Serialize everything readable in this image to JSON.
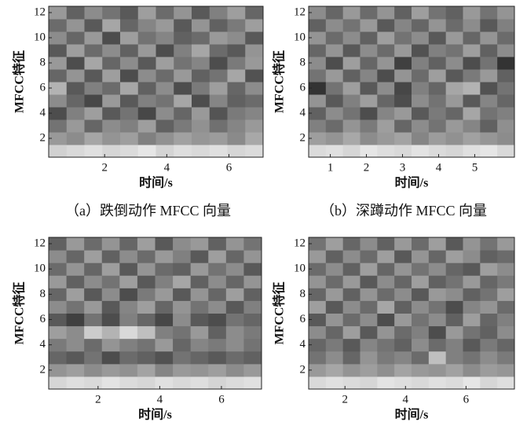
{
  "chart_data": [
    {
      "type": "heatmap",
      "xlabel": "时间/s",
      "ylabel": "MFCC特征",
      "caption": "（a）跌倒动作 MFCC 向量",
      "xlim": [
        0.2,
        7.1
      ],
      "ylim": [
        0.5,
        12.5
      ],
      "xticks": [
        2,
        4,
        6
      ],
      "yticks": [
        2,
        4,
        6,
        8,
        10,
        12
      ],
      "zlim": [
        0,
        100
      ],
      "z": [
        [
          82,
          85,
          88,
          84,
          86,
          90,
          83,
          87,
          85,
          88,
          84,
          86
        ],
        [
          60,
          55,
          65,
          58,
          62,
          50,
          57,
          63,
          59,
          61,
          54,
          66
        ],
        [
          45,
          60,
          40,
          55,
          50,
          62,
          38,
          48,
          57,
          44,
          52,
          60
        ],
        [
          30,
          50,
          62,
          35,
          45,
          28,
          55,
          40,
          60,
          33,
          48,
          52
        ],
        [
          55,
          40,
          28,
          60,
          35,
          50,
          45,
          65,
          30,
          52,
          38,
          42
        ],
        [
          70,
          35,
          50,
          42,
          65,
          38,
          55,
          30,
          48,
          62,
          40,
          55
        ],
        [
          40,
          58,
          35,
          62,
          30,
          55,
          42,
          60,
          38,
          45,
          65,
          32
        ],
        [
          60,
          30,
          65,
          40,
          55,
          35,
          62,
          45,
          52,
          30,
          48,
          60
        ],
        [
          35,
          62,
          42,
          55,
          38,
          60,
          30,
          50,
          65,
          42,
          35,
          58
        ],
        [
          55,
          40,
          60,
          30,
          62,
          45,
          52,
          38,
          42,
          60,
          55,
          35
        ],
        [
          42,
          58,
          35,
          65,
          40,
          52,
          60,
          35,
          58,
          38,
          48,
          62
        ],
        [
          60,
          38,
          55,
          45,
          35,
          62,
          42,
          58,
          35,
          50,
          62,
          40
        ]
      ]
    },
    {
      "type": "heatmap",
      "xlabel": "时间/s",
      "ylabel": "MFCC特征",
      "caption": "（b）深蹲动作 MFCC 向量",
      "xlim": [
        0.4,
        6.1
      ],
      "ylim": [
        0.5,
        12.5
      ],
      "xticks": [
        1,
        2,
        3,
        4,
        5
      ],
      "yticks": [
        2,
        4,
        6,
        8,
        10,
        12
      ],
      "zlim": [
        0,
        100
      ],
      "z": [
        [
          86,
          88,
          84,
          90,
          87,
          85,
          89,
          86,
          84,
          88,
          90,
          85
        ],
        [
          62,
          58,
          66,
          55,
          60,
          64,
          52,
          61,
          57,
          63,
          59,
          55
        ],
        [
          50,
          42,
          58,
          48,
          62,
          40,
          55,
          45,
          60,
          52,
          38,
          56
        ],
        [
          38,
          55,
          45,
          30,
          52,
          60,
          35,
          48,
          40,
          65,
          45,
          50
        ],
        [
          58,
          35,
          50,
          62,
          40,
          30,
          55,
          45,
          60,
          35,
          52,
          40
        ],
        [
          20,
          45,
          62,
          35,
          55,
          28,
          50,
          40,
          65,
          70,
          32,
          45
        ],
        [
          45,
          60,
          38,
          52,
          30,
          58,
          42,
          62,
          35,
          48,
          60,
          38
        ],
        [
          55,
          30,
          62,
          40,
          58,
          25,
          50,
          38,
          55,
          30,
          45,
          20
        ],
        [
          40,
          58,
          35,
          55,
          42,
          60,
          32,
          50,
          45,
          62,
          38,
          55
        ],
        [
          58,
          42,
          55,
          38,
          62,
          45,
          55,
          35,
          60,
          40,
          58,
          42
        ],
        [
          38,
          55,
          45,
          60,
          35,
          52,
          40,
          58,
          42,
          55,
          35,
          50
        ],
        [
          55,
          40,
          60,
          42,
          58,
          38,
          62,
          45,
          38,
          60,
          45,
          58
        ]
      ]
    },
    {
      "type": "heatmap",
      "xlabel": "时间/s",
      "ylabel": "MFCC特征",
      "xlim": [
        0.4,
        7.3
      ],
      "ylim": [
        0.5,
        12.5
      ],
      "xticks": [
        2,
        4,
        6
      ],
      "yticks": [
        2,
        4,
        6,
        8,
        10,
        12
      ],
      "zlim": [
        0,
        100
      ],
      "z": [
        [
          84,
          87,
          85,
          89,
          86,
          84,
          88,
          85,
          87,
          83,
          86,
          88
        ],
        [
          58,
          62,
          55,
          60,
          57,
          64,
          52,
          60,
          58,
          62,
          55,
          60
        ],
        [
          40,
          35,
          45,
          30,
          42,
          38,
          32,
          45,
          40,
          35,
          42,
          38
        ],
        [
          48,
          55,
          42,
          58,
          50,
          45,
          60,
          40,
          52,
          48,
          55,
          45
        ],
        [
          62,
          55,
          80,
          70,
          85,
          75,
          50,
          45,
          60,
          38,
          55,
          48
        ],
        [
          35,
          25,
          45,
          30,
          50,
          40,
          28,
          55,
          35,
          30,
          45,
          40
        ],
        [
          55,
          45,
          60,
          35,
          52,
          62,
          40,
          58,
          45,
          55,
          35,
          50
        ],
        [
          40,
          62,
          35,
          55,
          30,
          48,
          60,
          35,
          58,
          40,
          62,
          38
        ],
        [
          60,
          38,
          55,
          45,
          62,
          35,
          50,
          65,
          38,
          55,
          40,
          58
        ],
        [
          42,
          58,
          40,
          62,
          35,
          58,
          42,
          38,
          60,
          45,
          55,
          35
        ],
        [
          55,
          40,
          62,
          38,
          55,
          42,
          60,
          50,
          35,
          62,
          40,
          58
        ],
        [
          38,
          60,
          42,
          58,
          40,
          62,
          35,
          55,
          60,
          38,
          58,
          45
        ]
      ]
    },
    {
      "type": "heatmap",
      "xlabel": "时间/s",
      "ylabel": "MFCC特征",
      "xlim": [
        0.8,
        7.6
      ],
      "ylim": [
        0.5,
        12.5
      ],
      "xticks": [
        2,
        4,
        6
      ],
      "yticks": [
        2,
        4,
        6,
        8,
        10,
        12
      ],
      "zlim": [
        0,
        100
      ],
      "z": [
        [
          85,
          88,
          86,
          84,
          89,
          87,
          85,
          88,
          86,
          90,
          84,
          87
        ],
        [
          60,
          65,
          58,
          62,
          56,
          64,
          60,
          58,
          63,
          55,
          61,
          59
        ],
        [
          45,
          55,
          40,
          58,
          48,
          52,
          42,
          75,
          50,
          45,
          55,
          48
        ],
        [
          40,
          48,
          35,
          52,
          45,
          38,
          55,
          42,
          50,
          35,
          48,
          40
        ],
        [
          55,
          40,
          62,
          35,
          58,
          42,
          50,
          30,
          60,
          45,
          38,
          55
        ],
        [
          35,
          58,
          42,
          55,
          30,
          60,
          45,
          55,
          38,
          62,
          40,
          50
        ],
        [
          62,
          35,
          55,
          42,
          65,
          38,
          55,
          45,
          30,
          52,
          58,
          42
        ],
        [
          40,
          60,
          38,
          58,
          42,
          55,
          35,
          60,
          55,
          38,
          45,
          62
        ],
        [
          58,
          42,
          60,
          35,
          55,
          40,
          62,
          38,
          45,
          60,
          40,
          48
        ],
        [
          42,
          55,
          38,
          62,
          40,
          58,
          45,
          55,
          40,
          35,
          62,
          55
        ],
        [
          60,
          38,
          55,
          42,
          62,
          35,
          58,
          40,
          62,
          55,
          38,
          42
        ],
        [
          45,
          62,
          40,
          55,
          38,
          60,
          42,
          62,
          35,
          58,
          45,
          60
        ]
      ]
    }
  ]
}
